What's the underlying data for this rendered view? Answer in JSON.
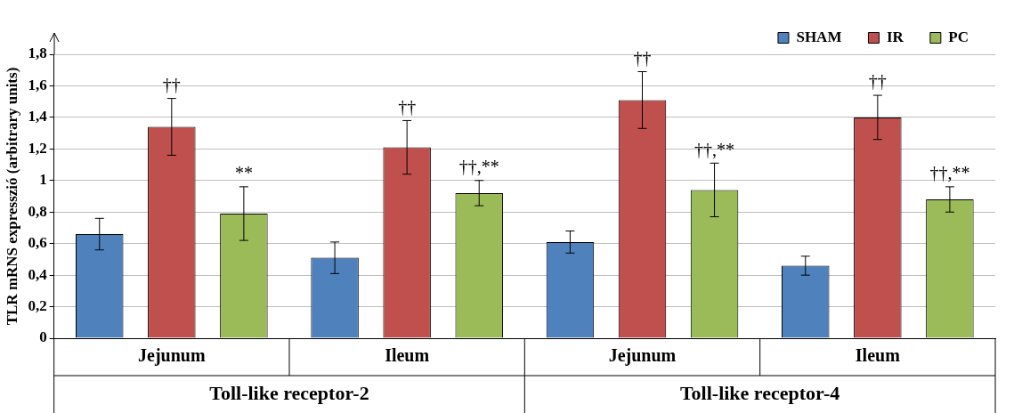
{
  "chart_data": {
    "type": "bar",
    "ylabel": "TLR mRNS expresszió (arbitrary units)",
    "categories": [
      "Jejunum",
      "Ileum",
      "Jejunum",
      "Ileum"
    ],
    "series": [
      {
        "name": "SHAM",
        "color": "#4f81bd",
        "values": [
          0.66,
          0.51,
          0.61,
          0.46
        ],
        "errors": [
          0.1,
          0.1,
          0.07,
          0.06
        ]
      },
      {
        "name": "IR",
        "color": "#c0504d",
        "values": [
          1.34,
          1.21,
          1.51,
          1.4
        ],
        "errors": [
          0.18,
          0.17,
          0.18,
          0.14
        ]
      },
      {
        "name": "PC",
        "color": "#9bbb59",
        "values": [
          0.79,
          0.92,
          0.94,
          0.88
        ],
        "errors": [
          0.17,
          0.08,
          0.17,
          0.08
        ]
      }
    ],
    "ylim": [
      0,
      1.8
    ],
    "yticks": [
      0,
      {
        "value": 0.2,
        "label": "0,2"
      },
      {
        "value": 0.4,
        "label": "0,4"
      },
      {
        "value": 0.6,
        "label": "0,6"
      },
      {
        "value": 0.8,
        "label": "0,8"
      },
      1,
      {
        "value": 1.2,
        "label": "1,2"
      },
      {
        "value": 1.4,
        "label": "1,4"
      },
      {
        "value": 1.6,
        "label": "1,6"
      },
      {
        "value": 1.8,
        "label": "1,8"
      }
    ],
    "annotations": [
      "††",
      "**",
      "††",
      "††,**",
      "††",
      "††,**",
      "††",
      "††,**",
      "Toll-like receptor-2",
      "Toll-like receptor-4"
    ],
    "grid": "y",
    "legend": "top right"
  }
}
